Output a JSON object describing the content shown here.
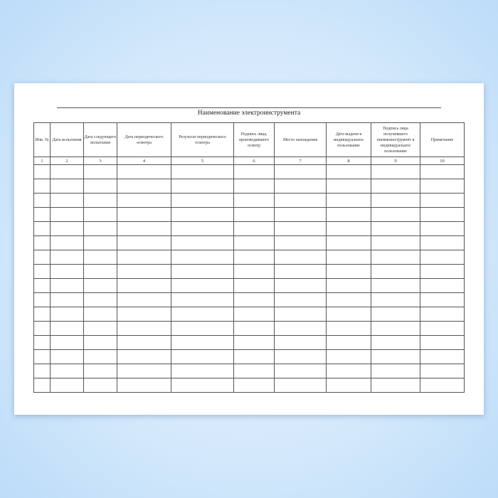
{
  "document": {
    "title": "Наименование электроинструмента",
    "columns": [
      {
        "header": "Инв. №",
        "number": "1"
      },
      {
        "header": "Дата испытания",
        "number": "2"
      },
      {
        "header": "Дата следующего испытания",
        "number": "3"
      },
      {
        "header": "Дата периодического осмотра",
        "number": "4"
      },
      {
        "header": "Результат периодического осмотра",
        "number": "5"
      },
      {
        "header": "Подпись лица, производившего осмотр",
        "number": "6"
      },
      {
        "header": "Место нахождения",
        "number": "7"
      },
      {
        "header": "Дата выдачи в индивидуальное пользование",
        "number": "8"
      },
      {
        "header": "Подпись лица получившего пневмоинструмент в индивидуальное пользование",
        "number": "9"
      },
      {
        "header": "Примечание",
        "number": "10"
      }
    ],
    "empty_rows": 16
  },
  "colors": {
    "background": "#d3e8fb",
    "page": "#ffffff",
    "lines": "#555555"
  }
}
